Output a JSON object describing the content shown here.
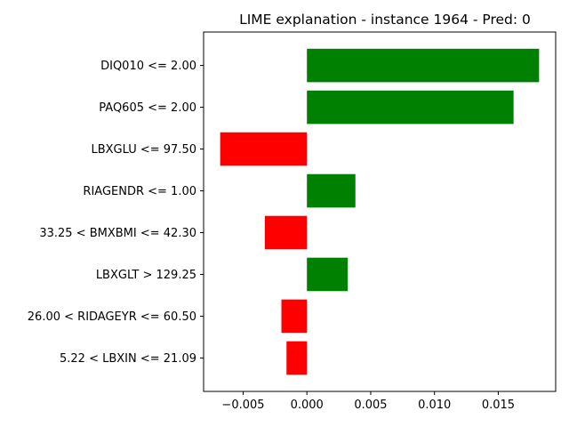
{
  "chart_data": {
    "type": "bar",
    "orientation": "horizontal",
    "title": "LIME explanation - instance 1964 - Pred: 0",
    "xlabel": "",
    "ylabel": "",
    "categories": [
      "DIQ010 <= 2.00",
      "PAQ605 <= 2.00",
      "LBXGLU <= 97.50",
      "RIAGENDR <= 1.00",
      "33.25 < BMXBMI <= 42.30",
      "LBXGLT > 129.25",
      "26.00 < RIDAGEYR <= 60.50",
      "5.22 < LBXIN <= 21.09"
    ],
    "values": [
      0.0182,
      0.0162,
      -0.0068,
      0.0038,
      -0.0033,
      0.0032,
      -0.002,
      -0.0016
    ],
    "xlim": [
      -0.0081,
      0.0195
    ],
    "xticks": [
      -0.005,
      0.0,
      0.005,
      0.01,
      0.015
    ],
    "xtick_labels": [
      "−0.005",
      "0.000",
      "0.005",
      "0.010",
      "0.015"
    ],
    "grid": false,
    "legend": "none",
    "colors": {
      "positive": "#008000",
      "negative": "#ff0000"
    }
  }
}
